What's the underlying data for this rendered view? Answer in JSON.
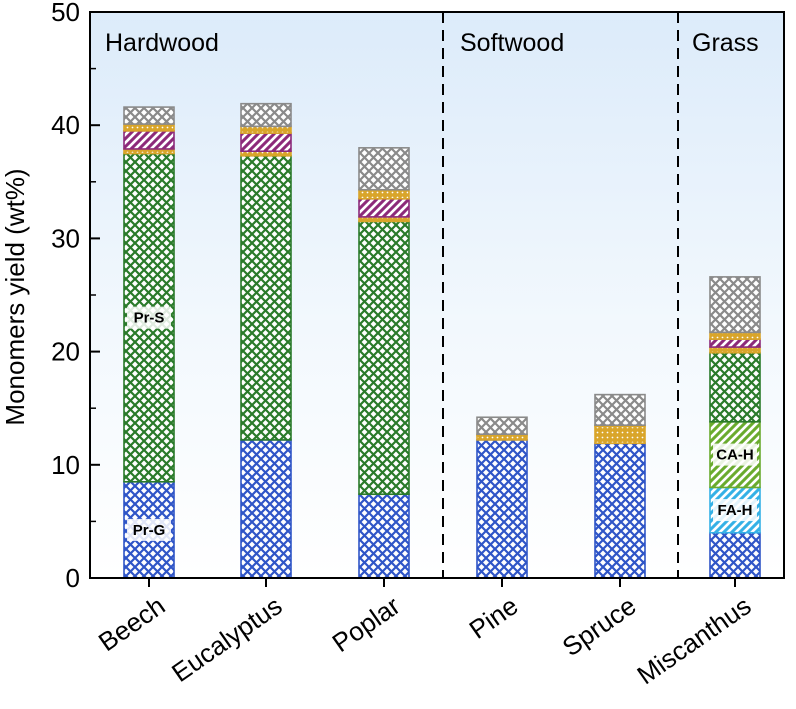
{
  "chart_data": {
    "type": "bar",
    "stacked": true,
    "ylabel": "Monomers yield (wt%)",
    "xlabel": "",
    "ylim": [
      0,
      50
    ],
    "yticks": [
      0,
      10,
      20,
      30,
      40,
      50
    ],
    "grid": false,
    "categories": [
      "Beech",
      "Eucalyptus",
      "Poplar",
      "Pine",
      "Spruce",
      "Miscanthus"
    ],
    "groups": [
      {
        "label": "Hardwood",
        "categories": [
          "Beech",
          "Eucalyptus",
          "Poplar"
        ]
      },
      {
        "label": "Softwood",
        "categories": [
          "Pine",
          "Spruce"
        ]
      },
      {
        "label": "Grass",
        "categories": [
          "Miscanthus"
        ]
      }
    ],
    "series": [
      {
        "key": "prg",
        "label": "Pr-G",
        "label_on": "Beech",
        "color": "#2f55c7",
        "pattern": "crosshatch",
        "values": [
          8.5,
          12.2,
          7.4,
          12.2,
          11.9,
          4.0
        ]
      },
      {
        "key": "fah",
        "label": "FA-H",
        "label_on": "Miscanthus",
        "color": "#35b1e6",
        "pattern": "diagonal",
        "values": [
          0,
          0,
          0,
          0,
          0,
          4.0
        ]
      },
      {
        "key": "cah",
        "label": "CA-H",
        "label_on": "Miscanthus",
        "color": "#6aab2e",
        "pattern": "diagonal",
        "values": [
          0,
          0,
          0,
          0,
          0,
          5.8
        ]
      },
      {
        "key": "prs",
        "label": "Pr-S",
        "label_on": "Beech",
        "color": "#2a7a2a",
        "pattern": "crosshatch",
        "values": [
          29.0,
          25.1,
          24.1,
          0,
          0,
          6.1
        ]
      },
      {
        "key": "s4",
        "label": "",
        "label_on": "",
        "color": "#d9a52a",
        "pattern": "dots",
        "values": [
          0.4,
          0.4,
          0.4,
          0.4,
          1.5,
          0.5
        ]
      },
      {
        "key": "s5",
        "label": "",
        "label_on": "",
        "color": "#8c2a7a",
        "pattern": "diagonal",
        "values": [
          1.6,
          1.6,
          1.6,
          0,
          0,
          0.7
        ]
      },
      {
        "key": "s6",
        "label": "",
        "label_on": "",
        "color": "#d9a52a",
        "pattern": "dots",
        "values": [
          0.6,
          0.6,
          0.8,
          0.1,
          0.1,
          0.6
        ]
      },
      {
        "key": "s7",
        "label": "",
        "label_on": "",
        "color": "#8a8a8a",
        "pattern": "crosshatch",
        "values": [
          1.5,
          2.0,
          3.7,
          1.5,
          2.7,
          4.9
        ]
      }
    ]
  }
}
